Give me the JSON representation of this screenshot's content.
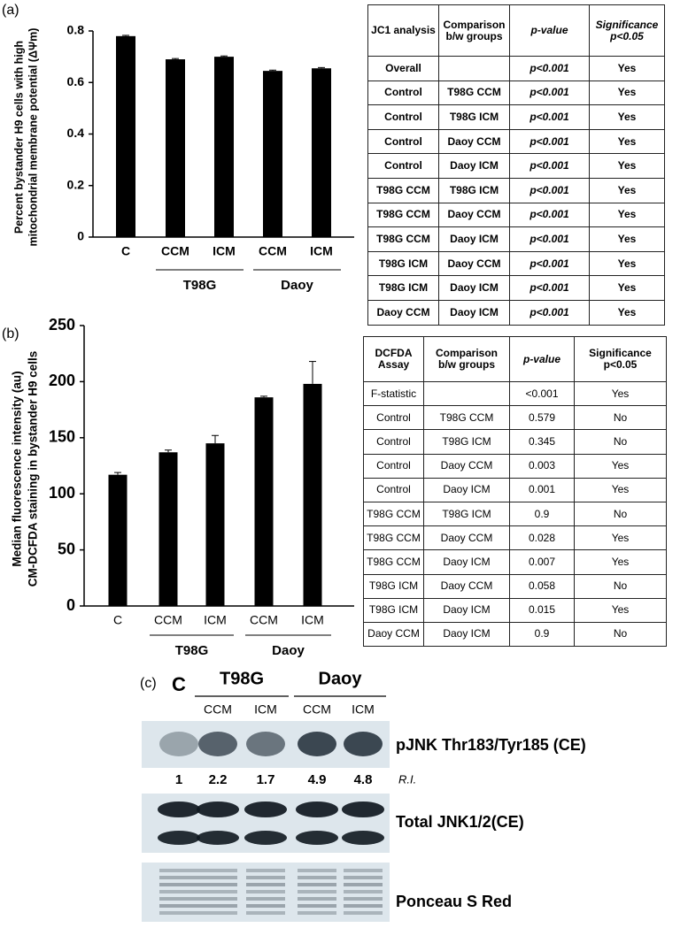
{
  "panel_labels": [
    "(a)",
    "(b)",
    "(c)"
  ],
  "chart_data": [
    {
      "type": "bar",
      "y_label": [
        "Percent bystander H9 cells with high",
        "mitochondrial membrane potential (ΔΨm)"
      ],
      "categories": [
        "C",
        "CCM",
        "ICM",
        "CCM",
        "ICM"
      ],
      "groups": [
        "T98G",
        "Daoy"
      ],
      "values": [
        0.78,
        0.69,
        0.7,
        0.645,
        0.655
      ],
      "errors": [
        0.003,
        0.003,
        0.003,
        0.003,
        0.003
      ],
      "color": "#000000",
      "ylim": [
        0,
        0.8
      ],
      "yticks": [
        0,
        0.2,
        0.4,
        0.6,
        0.8
      ]
    },
    {
      "type": "bar",
      "y_label": [
        "Median fluorescence intensity (au)",
        "CM-DCFDA staining in bystander H9 cells"
      ],
      "categories": [
        "C",
        "CCM",
        "ICM",
        "CCM",
        "ICM"
      ],
      "groups": [
        "T98G",
        "Daoy"
      ],
      "values": [
        117,
        137,
        145,
        186,
        198
      ],
      "errors": [
        2,
        2,
        7,
        1,
        20
      ],
      "color": "#000000",
      "ylim": [
        0,
        250
      ],
      "yticks": [
        0,
        50,
        100,
        150,
        200,
        250
      ]
    }
  ],
  "tables": [
    {
      "header": [
        "JC1 analysis",
        "Comparison b/w groups",
        "p-value",
        "Significance p<0.05"
      ],
      "rows": [
        [
          "Overall",
          "",
          "p<0.001",
          "Yes"
        ],
        [
          "Control",
          "T98G CCM",
          "p<0.001",
          "Yes"
        ],
        [
          "Control",
          "T98G ICM",
          "p<0.001",
          "Yes"
        ],
        [
          "Control",
          "Daoy CCM",
          "p<0.001",
          "Yes"
        ],
        [
          "Control",
          "Daoy ICM",
          "p<0.001",
          "Yes"
        ],
        [
          "T98G CCM",
          "T98G ICM",
          "p<0.001",
          "Yes"
        ],
        [
          "T98G CCM",
          "Daoy CCM",
          "p<0.001",
          "Yes"
        ],
        [
          "T98G CCM",
          "Daoy ICM",
          "p<0.001",
          "Yes"
        ],
        [
          "T98G ICM",
          "Daoy CCM",
          "p<0.001",
          "Yes"
        ],
        [
          "T98G ICM",
          "Daoy ICM",
          "p<0.001",
          "Yes"
        ],
        [
          "Daoy CCM",
          "Daoy ICM",
          "p<0.001",
          "Yes"
        ]
      ]
    },
    {
      "header": [
        "DCFDA Assay",
        "Comparison b/w groups",
        "p-value",
        "Significance p<0.05"
      ],
      "rows": [
        [
          "F-statistic",
          "",
          "<0.001",
          "Yes"
        ],
        [
          "Control",
          "T98G CCM",
          "0.579",
          "No"
        ],
        [
          "Control",
          "T98G ICM",
          "0.345",
          "No"
        ],
        [
          "Control",
          "Daoy CCM",
          "0.003",
          "Yes"
        ],
        [
          "Control",
          "Daoy ICM",
          "0.001",
          "Yes"
        ],
        [
          "T98G CCM",
          "T98G ICM",
          "0.9",
          "No"
        ],
        [
          "T98G CCM",
          "Daoy CCM",
          "0.028",
          "Yes"
        ],
        [
          "T98G CCM",
          "Daoy ICM",
          "0.007",
          "Yes"
        ],
        [
          "T98G ICM",
          "Daoy CCM",
          "0.058",
          "No"
        ],
        [
          "T98G ICM",
          "Daoy ICM",
          "0.015",
          "Yes"
        ],
        [
          "Daoy CCM",
          "Daoy ICM",
          "0.9",
          "No"
        ]
      ]
    }
  ],
  "blot": {
    "lanes": [
      "C",
      "CCM",
      "ICM",
      "CCM",
      "ICM"
    ],
    "groups": [
      "T98G",
      "Daoy"
    ],
    "rows": [
      "pJNK Thr183/Tyr185 (CE)",
      "Total JNK1/2(CE)",
      "Ponceau S Red"
    ],
    "ri_label": "R.I.",
    "ri_values": [
      "1",
      "2.2",
      "1.7",
      "4.9",
      "4.8"
    ]
  }
}
